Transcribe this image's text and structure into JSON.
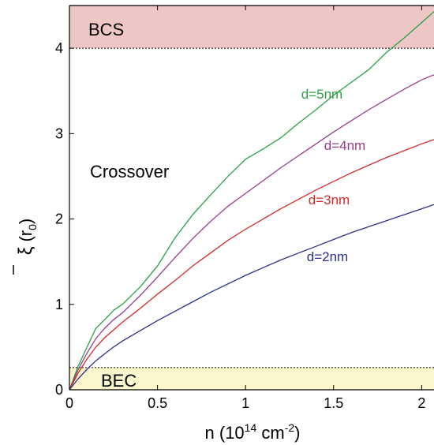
{
  "chart_data": {
    "type": "line",
    "xlabel": "n (10",
    "xlabel_exp": "14",
    "xlabel_unit": " cm",
    "xlabel_unit_exp": "-2",
    "xlabel_close": ")",
    "ylabel_symbol": "ξ",
    "ylabel_unit": "(r",
    "ylabel_sub": "0",
    "ylabel_close": ")",
    "xlim": [
      0,
      2.07
    ],
    "ylim": [
      0,
      4.5
    ],
    "xticks": [
      "0",
      "0.5",
      "1",
      "1.5",
      "2"
    ],
    "xtick_values": [
      0,
      0.5,
      1,
      1.5,
      2
    ],
    "yticks": [
      "0",
      "1",
      "2",
      "3",
      "4"
    ],
    "ytick_values": [
      0,
      1,
      2,
      3,
      4
    ],
    "regions": [
      {
        "label": "BCS",
        "y_from": 4.0,
        "y_to": 4.5,
        "color": "#efc6c6"
      },
      {
        "label": "BEC",
        "y_from": 0.0,
        "y_to": 0.26,
        "color": "#fbf7cc"
      }
    ],
    "region_text": "Crossover",
    "series": [
      {
        "name": "d=5nm",
        "color": "#2ca048",
        "x": [
          0,
          0.05,
          0.1,
          0.15,
          0.2,
          0.25,
          0.3,
          0.4,
          0.5,
          0.6,
          0.7,
          0.8,
          0.9,
          1.0,
          1.1,
          1.2,
          1.3,
          1.4,
          1.5,
          1.6,
          1.7,
          1.8,
          1.9,
          2.0,
          2.07
        ],
        "y": [
          0,
          0.28,
          0.5,
          0.72,
          0.82,
          0.93,
          1.0,
          1.2,
          1.45,
          1.78,
          2.05,
          2.28,
          2.5,
          2.7,
          2.82,
          2.95,
          3.12,
          3.28,
          3.45,
          3.6,
          3.75,
          3.95,
          4.12,
          4.3,
          4.43
        ]
      },
      {
        "name": "d=4nm",
        "color": "#9a3d8c",
        "x": [
          0,
          0.05,
          0.1,
          0.15,
          0.2,
          0.25,
          0.3,
          0.4,
          0.5,
          0.6,
          0.7,
          0.8,
          0.9,
          1.0,
          1.1,
          1.2,
          1.3,
          1.4,
          1.5,
          1.6,
          1.7,
          1.8,
          1.9,
          2.0,
          2.07
        ],
        "y": [
          0,
          0.24,
          0.43,
          0.6,
          0.72,
          0.82,
          0.9,
          1.1,
          1.32,
          1.55,
          1.77,
          1.97,
          2.15,
          2.3,
          2.45,
          2.6,
          2.74,
          2.88,
          3.02,
          3.15,
          3.28,
          3.4,
          3.52,
          3.63,
          3.69
        ]
      },
      {
        "name": "d=3nm",
        "color": "#d42a2a",
        "x": [
          0,
          0.05,
          0.1,
          0.15,
          0.2,
          0.25,
          0.3,
          0.4,
          0.5,
          0.6,
          0.7,
          0.8,
          0.9,
          1.0,
          1.1,
          1.2,
          1.3,
          1.4,
          1.5,
          1.6,
          1.7,
          1.8,
          1.9,
          2.0,
          2.07
        ],
        "y": [
          0,
          0.2,
          0.36,
          0.5,
          0.61,
          0.7,
          0.79,
          0.95,
          1.12,
          1.28,
          1.45,
          1.6,
          1.75,
          1.88,
          2.0,
          2.12,
          2.23,
          2.34,
          2.44,
          2.54,
          2.63,
          2.72,
          2.8,
          2.88,
          2.93
        ]
      },
      {
        "name": "d=2nm",
        "color": "#2a2f8a",
        "x": [
          0,
          0.05,
          0.1,
          0.15,
          0.2,
          0.25,
          0.3,
          0.4,
          0.5,
          0.6,
          0.7,
          0.8,
          0.9,
          1.0,
          1.1,
          1.2,
          1.3,
          1.4,
          1.5,
          1.6,
          1.7,
          1.8,
          1.9,
          2.0,
          2.07
        ],
        "y": [
          0,
          0.13,
          0.24,
          0.34,
          0.42,
          0.5,
          0.57,
          0.69,
          0.81,
          0.92,
          1.03,
          1.14,
          1.24,
          1.34,
          1.43,
          1.52,
          1.6,
          1.68,
          1.76,
          1.84,
          1.91,
          1.98,
          2.05,
          2.12,
          2.17
        ]
      }
    ]
  }
}
